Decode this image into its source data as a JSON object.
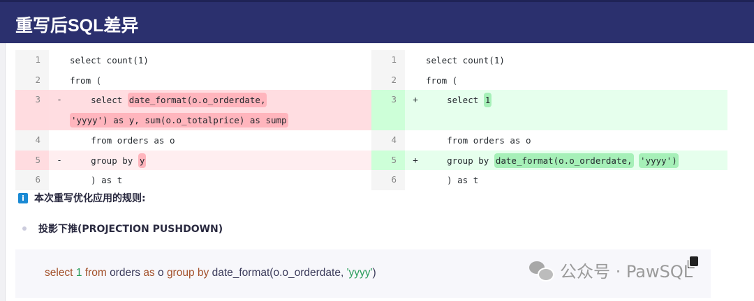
{
  "header": {
    "title": "重写后SQL差异"
  },
  "diff": {
    "left": [
      {
        "n": "1",
        "sign": "",
        "code": "select count(1)",
        "type": "ctx"
      },
      {
        "n": "2",
        "sign": "",
        "code": "from (",
        "type": "ctx"
      },
      {
        "n": "3",
        "sign": "-",
        "pre": "    select ",
        "hl": "date_format(o.o_orderdate,",
        "hl2": "'yyyy') as y, sum(o.o_totalprice) as sump",
        "type": "del"
      },
      {
        "n": "4",
        "sign": "",
        "code": "    from orders as o",
        "type": "ctx"
      },
      {
        "n": "5",
        "sign": "-",
        "pre": "    group by ",
        "hl": "y",
        "type": "del"
      },
      {
        "n": "6",
        "sign": "",
        "code": "    ) as t",
        "type": "ctx"
      }
    ],
    "right": [
      {
        "n": "1",
        "sign": "",
        "code": "select count(1)",
        "type": "ctx"
      },
      {
        "n": "2",
        "sign": "",
        "code": "from (",
        "type": "ctx"
      },
      {
        "n": "3",
        "sign": "+",
        "pre": "    select ",
        "hl": "1",
        "type": "add"
      },
      {
        "n": "4",
        "sign": "",
        "code": "    from orders as o",
        "type": "ctx"
      },
      {
        "n": "5",
        "sign": "+",
        "pre": "    group by ",
        "hl": "date_format(o.o_orderdate,",
        "hl2b": "'yyyy')",
        "type": "add"
      },
      {
        "n": "6",
        "sign": "",
        "code": "    ) as t",
        "type": "ctx"
      }
    ]
  },
  "info": {
    "icon": "info-icon",
    "text": "本次重写优化应用的规则:"
  },
  "rules": [
    {
      "text": "投影下推(PROJECTION PUSHDOWN)"
    }
  ],
  "sql": {
    "kw1": "select",
    "n1": "1",
    "kw2": "from",
    "t1": "orders",
    "kw3": "as",
    "t2": "o",
    "kw4": "group by",
    "t3": "date_format(o.o_orderdate, ",
    "str": "'yyyy'",
    "t4": ")"
  },
  "watermark": {
    "text": "公众号 · PawSQL"
  },
  "colors": {
    "header": "#2b306e",
    "del": "#ffb5bd",
    "add": "#a6f0b8"
  }
}
